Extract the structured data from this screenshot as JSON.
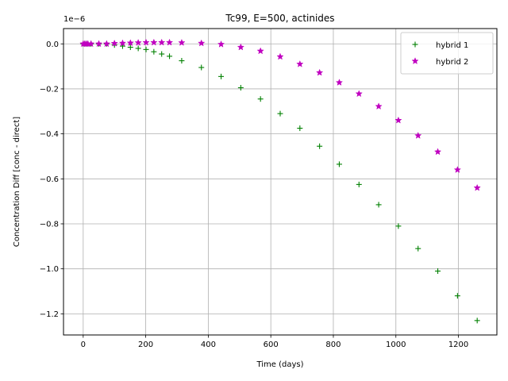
{
  "chart_data": {
    "type": "scatter",
    "title": "Tc99, E=500, actinides",
    "xlabel": "Time (days)",
    "ylabel": "Concentration Diff [conc - direct]",
    "y_offset_text": "1e−6",
    "xlim": [
      -63,
      1323
    ],
    "ylim": [
      -1.294,
      0.068
    ],
    "x_ticks": [
      0,
      200,
      400,
      600,
      800,
      1000,
      1200
    ],
    "x_tick_labels": [
      "0",
      "200",
      "400",
      "600",
      "800",
      "1000",
      "1200"
    ],
    "y_ticks": [
      0.0,
      -0.2,
      -0.4,
      -0.6,
      -0.8,
      -1.0,
      -1.2
    ],
    "y_tick_labels": [
      "0.0",
      "−0.2",
      "−0.4",
      "−0.6",
      "−0.8",
      "−1.0",
      "−1.2"
    ],
    "grid": true,
    "legend_position": "top-right",
    "series": [
      {
        "name": "hybrid 1",
        "marker": "plus",
        "color": "#008000",
        "x": [
          0,
          5,
          10,
          15,
          25,
          50,
          75,
          100,
          126,
          151,
          176,
          201,
          226,
          251,
          276,
          315,
          378,
          441,
          504,
          567,
          630,
          693,
          756,
          819,
          882,
          945,
          1008,
          1071,
          1134,
          1197,
          1260
        ],
        "y": [
          0.0,
          0.0,
          0.0,
          0.0,
          0.0,
          0.0,
          0.0,
          -0.005,
          -0.01,
          -0.015,
          -0.02,
          -0.025,
          -0.035,
          -0.045,
          -0.055,
          -0.075,
          -0.105,
          -0.145,
          -0.195,
          -0.245,
          -0.31,
          -0.375,
          -0.455,
          -0.535,
          -0.625,
          -0.715,
          -0.81,
          -0.91,
          -1.01,
          -1.12,
          -1.23
        ]
      },
      {
        "name": "hybrid 2",
        "marker": "star",
        "color": "#c000c0",
        "x": [
          0,
          5,
          10,
          15,
          25,
          50,
          75,
          100,
          126,
          151,
          176,
          201,
          226,
          251,
          276,
          315,
          378,
          441,
          504,
          567,
          630,
          693,
          756,
          819,
          882,
          945,
          1008,
          1071,
          1134,
          1197,
          1260
        ],
        "y": [
          0.0,
          0.0,
          0.0,
          0.0,
          0.0,
          0.0,
          0.0,
          0.002,
          0.003,
          0.004,
          0.005,
          0.006,
          0.006,
          0.006,
          0.006,
          0.005,
          0.003,
          -0.002,
          -0.015,
          -0.032,
          -0.057,
          -0.09,
          -0.128,
          -0.172,
          -0.222,
          -0.278,
          -0.34,
          -0.408,
          -0.48,
          -0.56,
          -0.64
        ]
      }
    ]
  }
}
